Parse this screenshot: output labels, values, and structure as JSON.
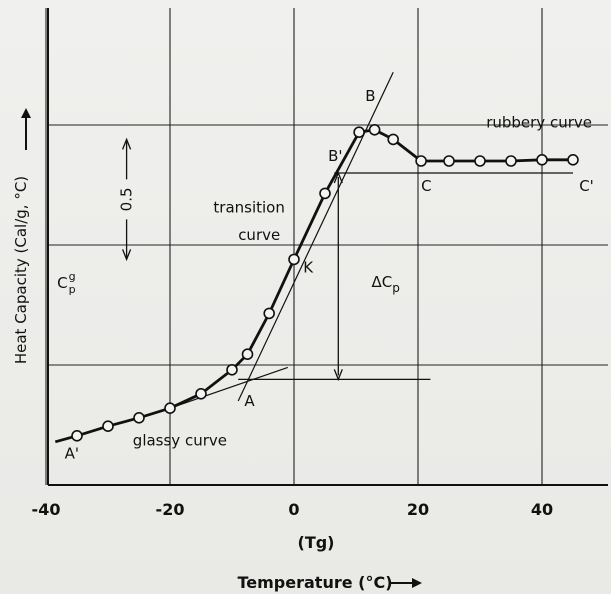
{
  "chart_data": {
    "type": "line",
    "title": "",
    "xlabel": "Temperature   (°C)",
    "xsublabel": "(Tg)",
    "ylabel": "Heat Capacity  (Cal/g, °C)",
    "xlim": [
      -40,
      50
    ],
    "ylim": [
      0,
      3.5
    ],
    "x_ticks": [
      -40,
      -20,
      0,
      20,
      40
    ],
    "x_tick_labels": [
      "-40",
      "-20",
      "0",
      "20",
      "40"
    ],
    "grid": true,
    "series": [
      {
        "values_xy": [
          [
            -38.5,
            0.36
          ],
          [
            -35,
            0.41
          ],
          [
            -30,
            0.49
          ],
          [
            -25,
            0.56
          ],
          [
            -20,
            0.64
          ],
          [
            -15,
            0.76
          ],
          [
            -10,
            0.96
          ],
          [
            -7.5,
            1.09
          ],
          [
            -4,
            1.43
          ],
          [
            0,
            1.88
          ],
          [
            5,
            2.43
          ],
          [
            10.5,
            2.94
          ],
          [
            13,
            2.96
          ],
          [
            16,
            2.88
          ],
          [
            20.5,
            2.7
          ],
          [
            25,
            2.7
          ],
          [
            30,
            2.7
          ],
          [
            35,
            2.7
          ],
          [
            40,
            2.71
          ],
          [
            45,
            2.71
          ]
        ]
      }
    ],
    "tangent_lines": [
      {
        "from": [
          -20,
          0.64
        ],
        "to": [
          -1,
          0.98
        ]
      },
      {
        "from": [
          -9,
          0.7
        ],
        "to": [
          16,
          3.44
        ]
      }
    ],
    "reference_lines": [
      {
        "y": 2.6,
        "from_x": 6.5,
        "to_x": 45
      },
      {
        "y": 0.88,
        "from_x": -9,
        "to_x": 22
      }
    ],
    "delta_cp_range": [
      0.88,
      2.6
    ],
    "scale_bar": {
      "x": -27,
      "from_y": 1.88,
      "to_y": 2.88,
      "label": "0.5"
    },
    "annotations": [
      {
        "text": "A'",
        "x": -37,
        "y": 0.22
      },
      {
        "text": "A",
        "x": -8,
        "y": 0.66
      },
      {
        "text": "B",
        "x": 11.5,
        "y": 3.2
      },
      {
        "text": "B'",
        "x": 5.5,
        "y": 2.7
      },
      {
        "text": "C",
        "x": 20.5,
        "y": 2.45
      },
      {
        "text": "C'",
        "x": 46,
        "y": 2.45
      },
      {
        "text": "K",
        "x": 1.5,
        "y": 1.77
      },
      {
        "text": "transition",
        "x": -13,
        "y": 2.27
      },
      {
        "text": "curve",
        "x": -9,
        "y": 2.04
      },
      {
        "text": "rubbery curve",
        "x": 31,
        "y": 2.98
      },
      {
        "text": "glassy curve",
        "x": -26,
        "y": 0.33
      },
      {
        "text": "ΔCp",
        "x": 12.5,
        "y": 1.65
      },
      {
        "text": "Cpg",
        "x": -38.2,
        "y": 1.64
      }
    ]
  }
}
